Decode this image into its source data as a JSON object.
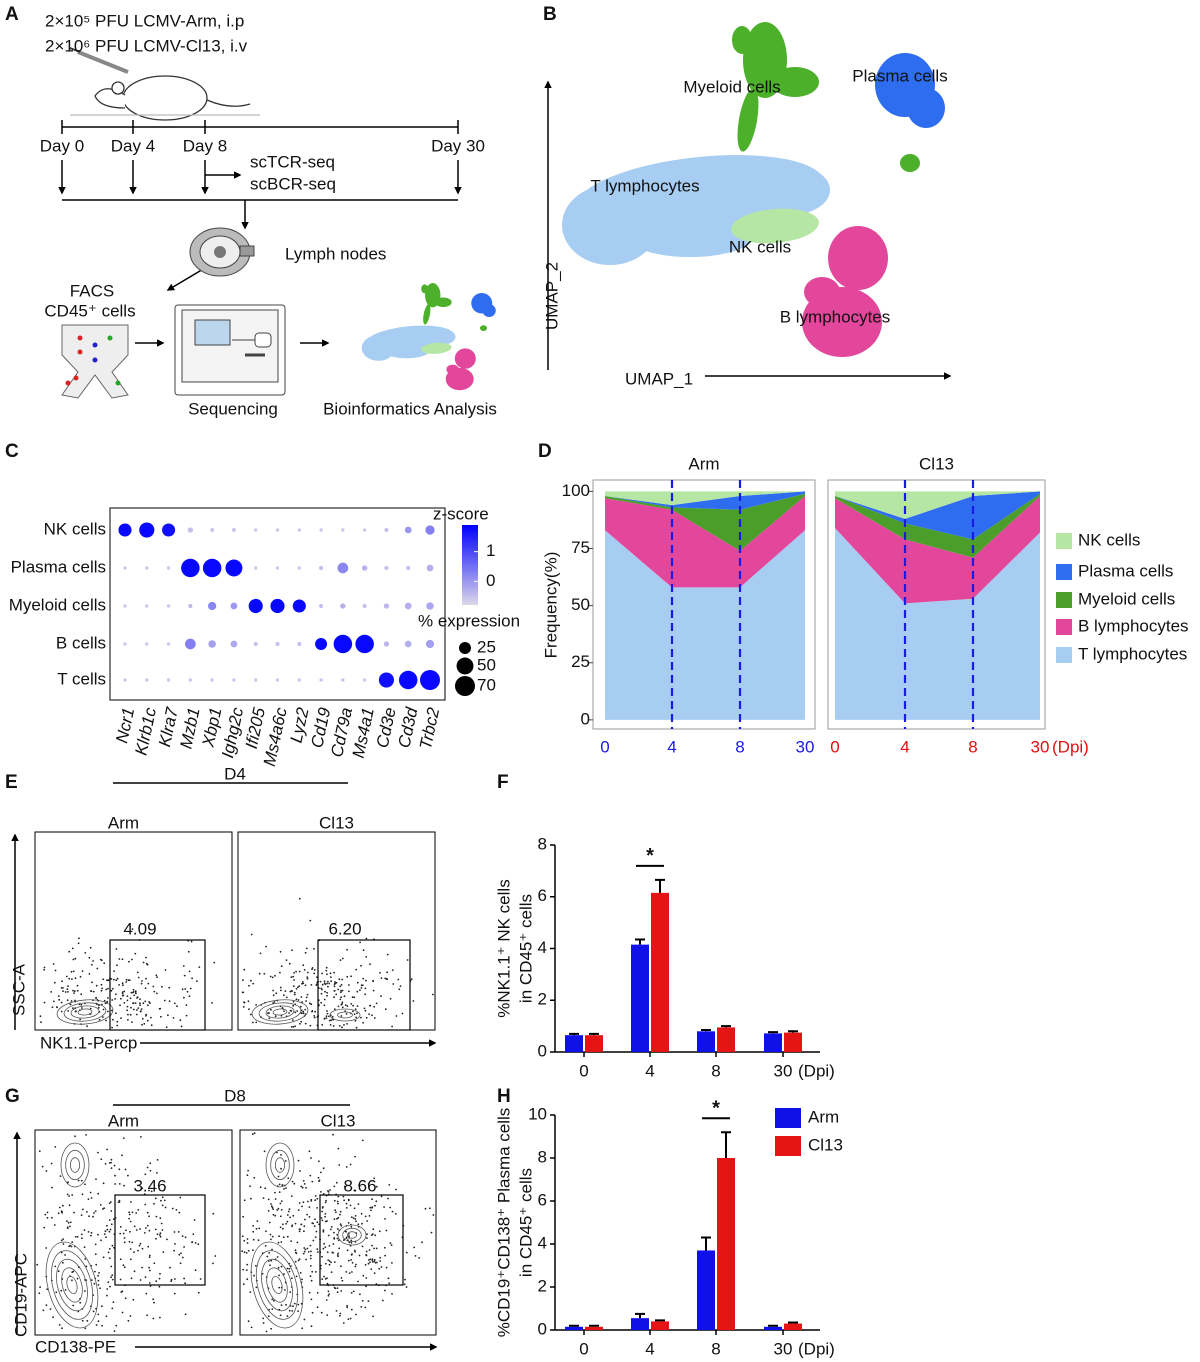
{
  "panel_labels": [
    "A",
    "B",
    "C",
    "D",
    "E",
    "F",
    "G",
    "H"
  ],
  "panel_a": {
    "lines": [
      "2×10⁵ PFU LCMV-Arm,  i.p",
      "2×10⁶ PFU LCMV-Cl13,  i.v"
    ],
    "days": [
      "Day 0",
      "Day 4",
      "Day 8",
      "Day 30"
    ],
    "assays": [
      "scTCR-seq",
      "scBCR-seq"
    ],
    "tissue": "Lymph nodes",
    "sorting": [
      "FACS",
      "CD45⁺ cells"
    ],
    "steps": [
      "Sequencing",
      "Bioinformatics Analysis"
    ]
  },
  "panel_b": {
    "x_label": "UMAP_1",
    "y_label": "UMAP_2",
    "clusters": [
      {
        "name": "Myeloid cells",
        "color": "#4cb02a"
      },
      {
        "name": "Plasma cells",
        "color": "#2e6cf0"
      },
      {
        "name": "T lymphocytes",
        "color": "#a8cdf2"
      },
      {
        "name": "NK cells",
        "color": "#b6e6a4"
      },
      {
        "name": "B lymphocytes",
        "color": "#e2479c"
      }
    ]
  },
  "panel_e": {
    "timepoint": "D4",
    "x_label": "NK1.1-Percp",
    "y_label": "SSC-A",
    "plots": [
      {
        "title": "Arm",
        "gate": "4.09"
      },
      {
        "title": "Cl13",
        "gate": "6.20"
      }
    ]
  },
  "panel_g": {
    "timepoint": "D8",
    "x_label": "CD138-PE",
    "y_label": "CD19-APC",
    "plots": [
      {
        "title": "Arm",
        "gate": "3.46"
      },
      {
        "title": "Cl13",
        "gate": "8.66"
      }
    ]
  },
  "chart_data": [
    {
      "type": "dot",
      "rows": [
        "NK cells",
        "Plasma cells",
        "Myeloid cells",
        "B cells",
        "T cells"
      ],
      "columns": [
        "Ncr1",
        "Klrb1c",
        "Klra7",
        "Mzb1",
        "Xbp1",
        "Ighg2c",
        "Ifi205",
        "Ms4a6c",
        "Lyz2",
        "Cd19",
        "Cd79a",
        "Ms4a1",
        "Cd3e",
        "Cd3d",
        "Trbc2"
      ],
      "z": [
        [
          1.8,
          1.8,
          1.7,
          -0.5,
          -0.6,
          -0.6,
          -0.6,
          -0.6,
          -0.6,
          -0.6,
          -0.6,
          -0.6,
          -0.5,
          0,
          0.3
        ],
        [
          -0.6,
          -0.6,
          -0.6,
          1.8,
          1.8,
          1.8,
          -0.6,
          -0.6,
          -0.6,
          -0.5,
          0.2,
          -0.3,
          -0.5,
          -0.5,
          -0.3
        ],
        [
          -0.6,
          -0.6,
          -0.6,
          -0.4,
          0.2,
          0,
          1.8,
          1.8,
          1.8,
          -0.5,
          -0.3,
          -0.5,
          -0.4,
          -0.3,
          -0.2
        ],
        [
          -0.6,
          -0.6,
          -0.6,
          0.3,
          -0.1,
          -0.2,
          -0.5,
          -0.5,
          -0.5,
          1.8,
          1.8,
          1.8,
          -0.4,
          -0.3,
          -0.1
        ],
        [
          -0.6,
          -0.6,
          -0.6,
          -0.6,
          -0.6,
          -0.6,
          -0.6,
          -0.6,
          -0.6,
          -0.6,
          -0.6,
          -0.6,
          1.7,
          1.8,
          1.8
        ]
      ],
      "pct": [
        [
          30,
          40,
          30,
          5,
          3,
          3,
          2,
          2,
          2,
          2,
          2,
          2,
          3,
          8,
          15
        ],
        [
          2,
          2,
          2,
          60,
          60,
          50,
          2,
          2,
          2,
          3,
          20,
          5,
          3,
          3,
          8
        ],
        [
          2,
          2,
          2,
          3,
          12,
          8,
          35,
          35,
          30,
          3,
          5,
          3,
          5,
          8,
          10
        ],
        [
          2,
          2,
          2,
          20,
          10,
          8,
          3,
          3,
          3,
          25,
          60,
          60,
          5,
          8,
          12
        ],
        [
          2,
          2,
          2,
          2,
          2,
          2,
          2,
          2,
          2,
          2,
          2,
          2,
          40,
          60,
          70
        ]
      ],
      "color_legend_title": "z-score",
      "colorbar_lim": [
        -0.8,
        1.9
      ],
      "color_ticks": [
        0,
        1
      ],
      "color_low": "#ddd7e9",
      "color_high": "#0000ff",
      "size_legend_title": "% expression",
      "size_ticks": [
        25,
        50,
        70
      ]
    },
    {
      "type": "area",
      "y_label": "Frequency(%)",
      "x_label": "(Dpi)",
      "categories": [
        "0",
        "4",
        "8",
        "30"
      ],
      "ylim": [
        -4,
        105
      ],
      "yticks": [
        0,
        25,
        50,
        75,
        100
      ],
      "series": [
        {
          "name": "T lymphocytes",
          "color": "#a8cdf2"
        },
        {
          "name": "B lymphocytes",
          "color": "#e2479c"
        },
        {
          "name": "Myeloid cells",
          "color": "#4c9e2a"
        },
        {
          "name": "Plasma cells",
          "color": "#2e6cf0"
        },
        {
          "name": "NK cells",
          "color": "#b6e6a4"
        }
      ],
      "facets": [
        {
          "title": "Arm",
          "tick_color": "#1a1ae6",
          "values": [
            [
              83,
              58,
              58,
              83
            ],
            [
              14,
              34,
              16,
              15
            ],
            [
              1,
              1,
              18,
              1
            ],
            [
              0,
              1,
              6,
              1
            ],
            [
              2,
              6,
              2,
              0
            ]
          ]
        },
        {
          "title": "Cl13",
          "tick_color": "#e01010",
          "values": [
            [
              84,
              51,
              53,
              82
            ],
            [
              13,
              28,
              18,
              16
            ],
            [
              1,
              7,
              8,
              1
            ],
            [
              0,
              2,
              19,
              1
            ],
            [
              2,
              12,
              2,
              0
            ]
          ]
        }
      ]
    },
    {
      "type": "bar",
      "y_label": [
        "%NK1.1⁺ NK cells",
        "in CD45⁺ cells"
      ],
      "x_label": "(Dpi)",
      "categories": [
        "0",
        "4",
        "8",
        "30"
      ],
      "ylim": [
        0,
        8
      ],
      "yticks": [
        0,
        2,
        4,
        6,
        8
      ],
      "series": [
        {
          "name": "Arm",
          "color": "#1010e8",
          "values": [
            0.65,
            4.15,
            0.8,
            0.72
          ],
          "errors": [
            0.05,
            0.2,
            0.05,
            0.05
          ]
        },
        {
          "name": "Cl13",
          "color": "#e51515",
          "values": [
            0.65,
            6.15,
            0.95,
            0.75
          ],
          "errors": [
            0.05,
            0.5,
            0.05,
            0.05
          ]
        }
      ],
      "annotation": "*",
      "annotation_category": "4",
      "legend": false
    },
    {
      "type": "bar",
      "y_label": [
        "%CD19⁺CD138⁺ Plasma cells",
        "in CD45⁺ cells"
      ],
      "x_label": "(Dpi)",
      "categories": [
        "0",
        "4",
        "8",
        "30"
      ],
      "ylim": [
        0,
        10
      ],
      "yticks": [
        0,
        2,
        4,
        6,
        8,
        10
      ],
      "series": [
        {
          "name": "Arm",
          "color": "#1010e8",
          "values": [
            0.15,
            0.55,
            3.7,
            0.15
          ],
          "errors": [
            0.05,
            0.2,
            0.6,
            0.05
          ]
        },
        {
          "name": "Cl13",
          "color": "#e51515",
          "values": [
            0.15,
            0.4,
            8.0,
            0.3
          ],
          "errors": [
            0.05,
            0.05,
            1.2,
            0.05
          ]
        }
      ],
      "annotation": "*",
      "annotation_category": "8",
      "legend": true
    }
  ]
}
